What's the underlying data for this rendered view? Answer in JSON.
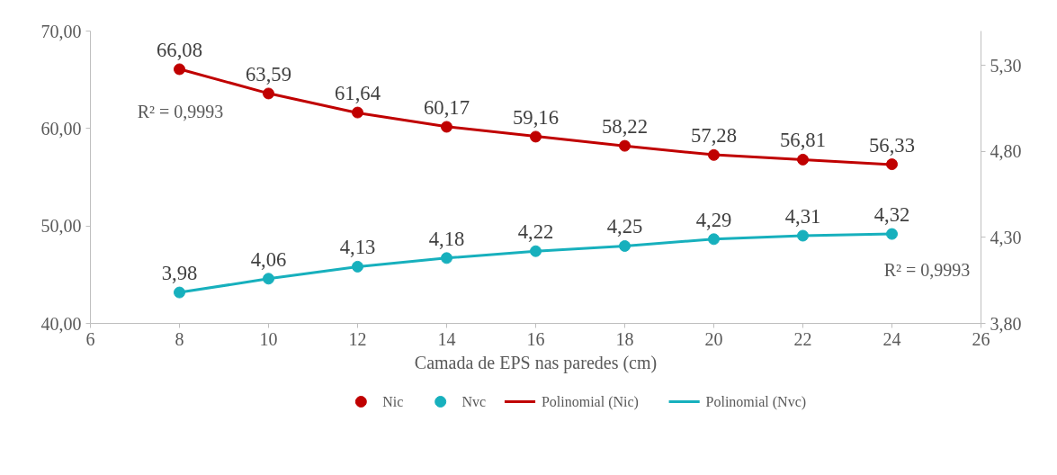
{
  "chart_data": {
    "type": "scatter",
    "xlabel": "Camada de EPS nas paredes (cm)",
    "x": [
      8,
      10,
      12,
      14,
      16,
      18,
      20,
      22,
      24
    ],
    "series": [
      {
        "name": "Nic",
        "color": "#c00000",
        "values": [
          66.08,
          63.59,
          61.64,
          60.17,
          59.16,
          58.22,
          57.28,
          56.81,
          56.33
        ],
        "value_labels": [
          "66,08",
          "63,59",
          "61,64",
          "60,17",
          "59,16",
          "58,22",
          "57,28",
          "56,81",
          "56,33"
        ]
      },
      {
        "name": "Nvc",
        "axis": "y2",
        "color": "#17b0bd",
        "values": [
          3.98,
          4.06,
          4.13,
          4.18,
          4.22,
          4.25,
          4.29,
          4.31,
          4.32
        ],
        "value_labels": [
          "3,98",
          "4,06",
          "4,13",
          "4,18",
          "4,22",
          "4,25",
          "4,29",
          "4,31",
          "4,32"
        ]
      },
      {
        "name": "Polinomial (Nic)",
        "type": "line",
        "marker": "none",
        "color": "#c00000",
        "values": [
          66.1,
          63.6,
          61.6,
          60.2,
          59.2,
          58.2,
          57.3,
          56.8,
          56.3
        ]
      },
      {
        "name": "Polinomial (Nvc)",
        "type": "line",
        "marker": "none",
        "axis": "y2",
        "color": "#17b0bd",
        "values": [
          3.98,
          4.06,
          4.13,
          4.18,
          4.22,
          4.25,
          4.29,
          4.31,
          4.32
        ]
      }
    ],
    "xlim": [
      6,
      26
    ],
    "xticks": [
      6,
      8,
      10,
      12,
      14,
      16,
      18,
      20,
      22,
      24,
      26
    ],
    "ylim": [
      40,
      70
    ],
    "yticks": [
      {
        "value": 40,
        "label": "40,00"
      },
      {
        "value": 50,
        "label": "50,00"
      },
      {
        "value": 60,
        "label": "60,00"
      },
      {
        "value": 70,
        "label": "70,00"
      }
    ],
    "y2lim": [
      3.8,
      5.5
    ],
    "y2ticks": [
      {
        "value": 3.8,
        "label": "3,80"
      },
      {
        "value": 4.3,
        "label": "4,30"
      },
      {
        "value": 4.8,
        "label": "4,80"
      },
      {
        "value": 5.3,
        "label": "5,30"
      }
    ],
    "annotations": [
      "R² = 0,9993",
      "R² = 0,9993"
    ],
    "legend": "bottom",
    "grid": false,
    "marker": "circle",
    "line_style": "solid"
  }
}
